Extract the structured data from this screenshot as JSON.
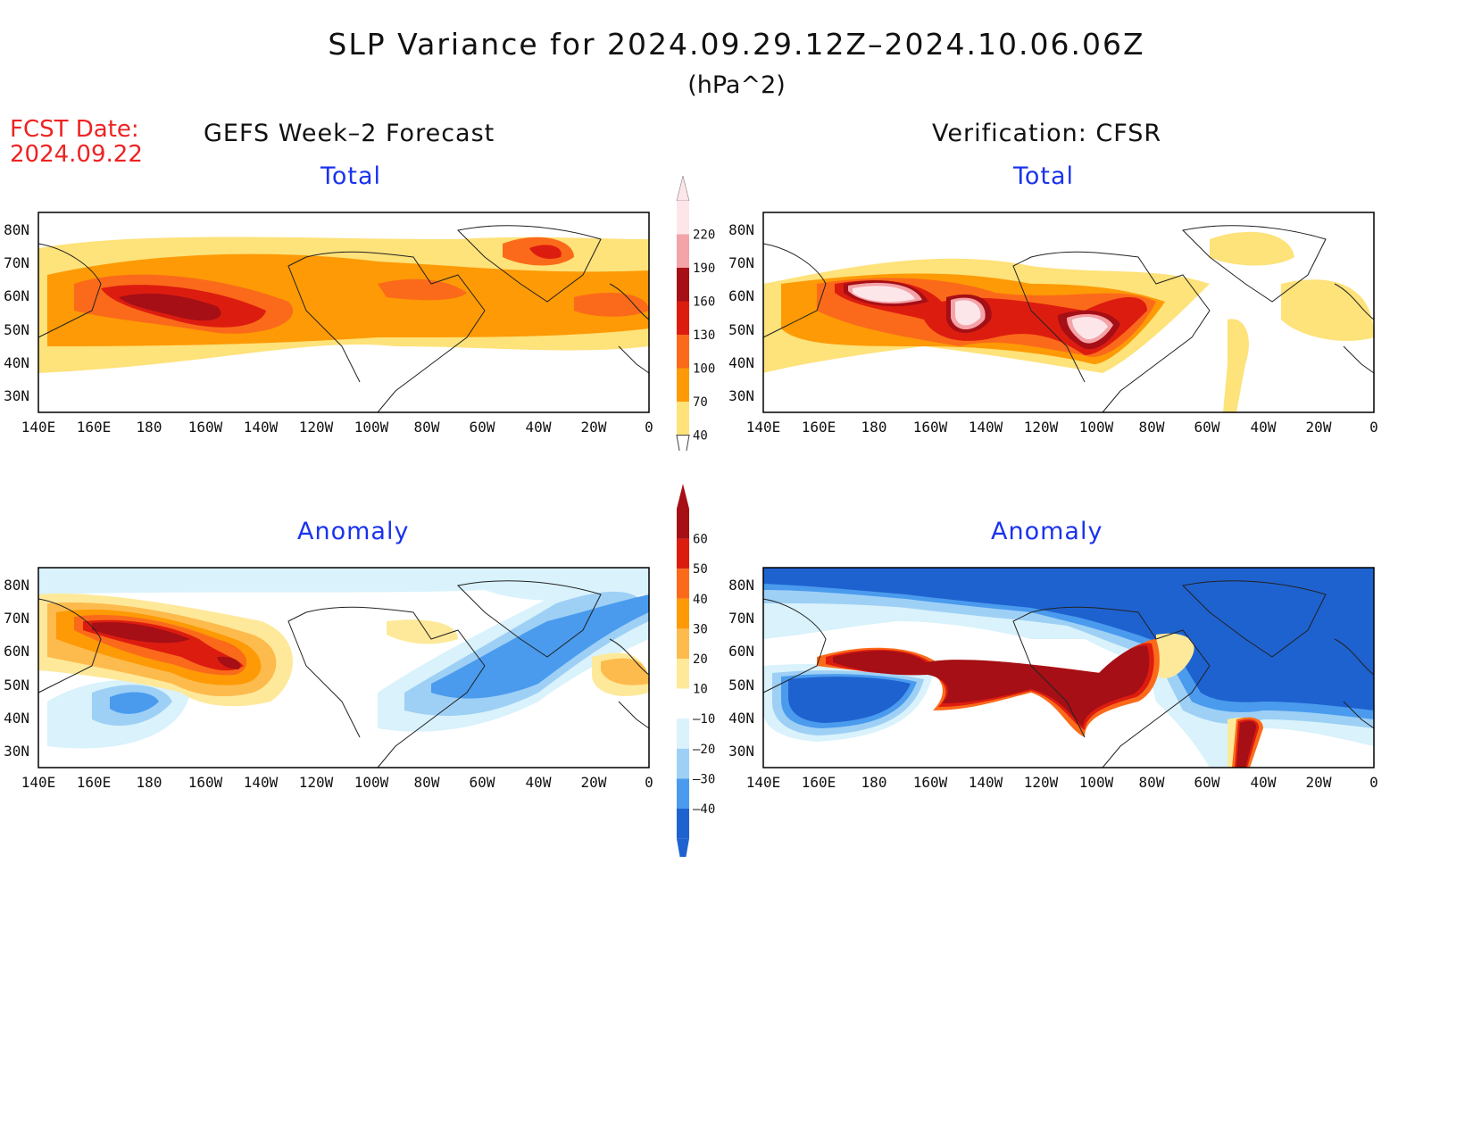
{
  "title": "SLP Variance for 2024.09.29.12Z–2024.10.06.06Z",
  "units": "(hPa^2)",
  "fcst_date_label": "FCST Date:",
  "fcst_date_value": "2024.09.22",
  "left_column_title": "GEFS Week–2 Forecast",
  "right_column_title": "Verification: CFSR",
  "panels": [
    {
      "title": "Total"
    },
    {
      "title": "Total"
    },
    {
      "title": "Anomaly"
    },
    {
      "title": "Anomaly"
    }
  ],
  "lat_labels": [
    "80N",
    "70N",
    "60N",
    "50N",
    "40N",
    "30N"
  ],
  "lon_labels": [
    "140E",
    "160E",
    "180",
    "160W",
    "140W",
    "120W",
    "100W",
    "80W",
    "60W",
    "40W",
    "20W",
    "0"
  ],
  "total_colorbar": {
    "labels": [
      "220",
      "190",
      "160",
      "130",
      "100",
      "70",
      "40"
    ],
    "colors": [
      "#fde6ea",
      "#f4a3a8",
      "#a50f15",
      "#dd1c10",
      "#fb6a1a",
      "#fd9a05",
      "#fee27a"
    ]
  },
  "anomaly_colorbar": {
    "labels": [
      "60",
      "50",
      "40",
      "30",
      "20",
      "10",
      "–10",
      "–20",
      "–30",
      "–40"
    ],
    "colors": [
      "#a50f15",
      "#dd1c10",
      "#fb6a1a",
      "#fd9a05",
      "#fdbb4d",
      "#fee99a",
      "#ffffff",
      "#d9f2fc",
      "#9ed0f5",
      "#4a9bee",
      "#1e62cf"
    ]
  }
}
